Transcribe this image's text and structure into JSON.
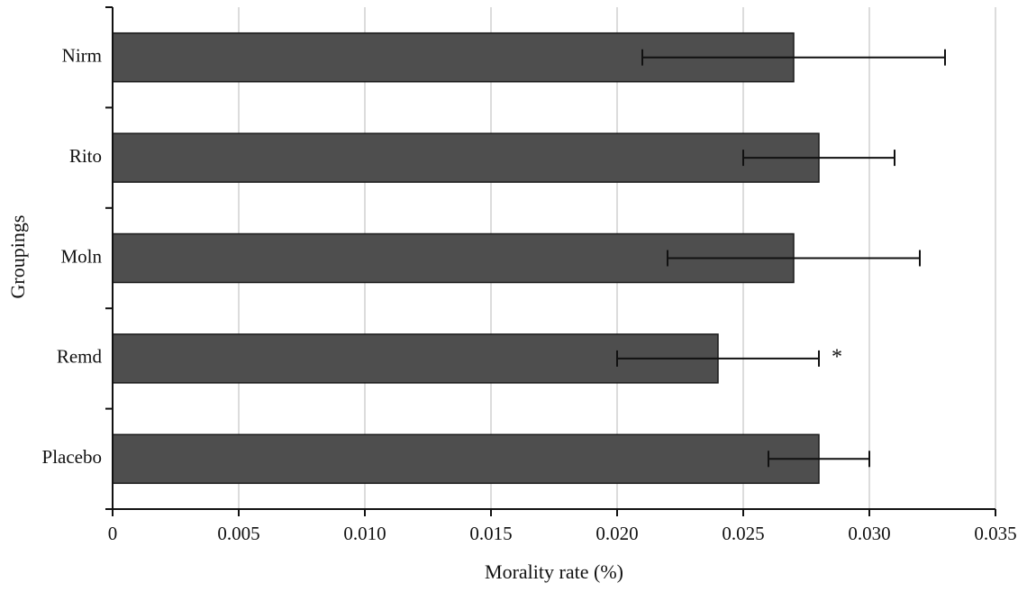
{
  "chart_data": {
    "type": "bar",
    "orientation": "horizontal",
    "title": "",
    "xlabel": "Morality rate (%)",
    "ylabel": "Groupings",
    "categories": [
      "Nirm",
      "Rito",
      "Moln",
      "Remd",
      "Placebo"
    ],
    "values": [
      0.027,
      0.028,
      0.027,
      0.024,
      0.028
    ],
    "error_low": [
      0.021,
      0.025,
      0.022,
      0.02,
      0.026
    ],
    "error_high": [
      0.033,
      0.031,
      0.032,
      0.028,
      0.03
    ],
    "annotations": [
      {
        "category": "Remd",
        "text": "*",
        "x": 0.0285
      }
    ],
    "xlim": [
      0,
      0.035
    ],
    "xticks": [
      0,
      0.005,
      0.01,
      0.015,
      0.02,
      0.025,
      0.03,
      0.035
    ],
    "xtick_labels": [
      "0",
      "0.005",
      "0.010",
      "0.015",
      "0.020",
      "0.025",
      "0.030",
      "0.035"
    ],
    "grid": true,
    "legend": "none",
    "bar_color": "#4e4e4e",
    "bar_border_color": "#1a1a1a",
    "error_color": "#111111",
    "axis_color": "#111111",
    "gridline_color": "#c4c4c4"
  }
}
